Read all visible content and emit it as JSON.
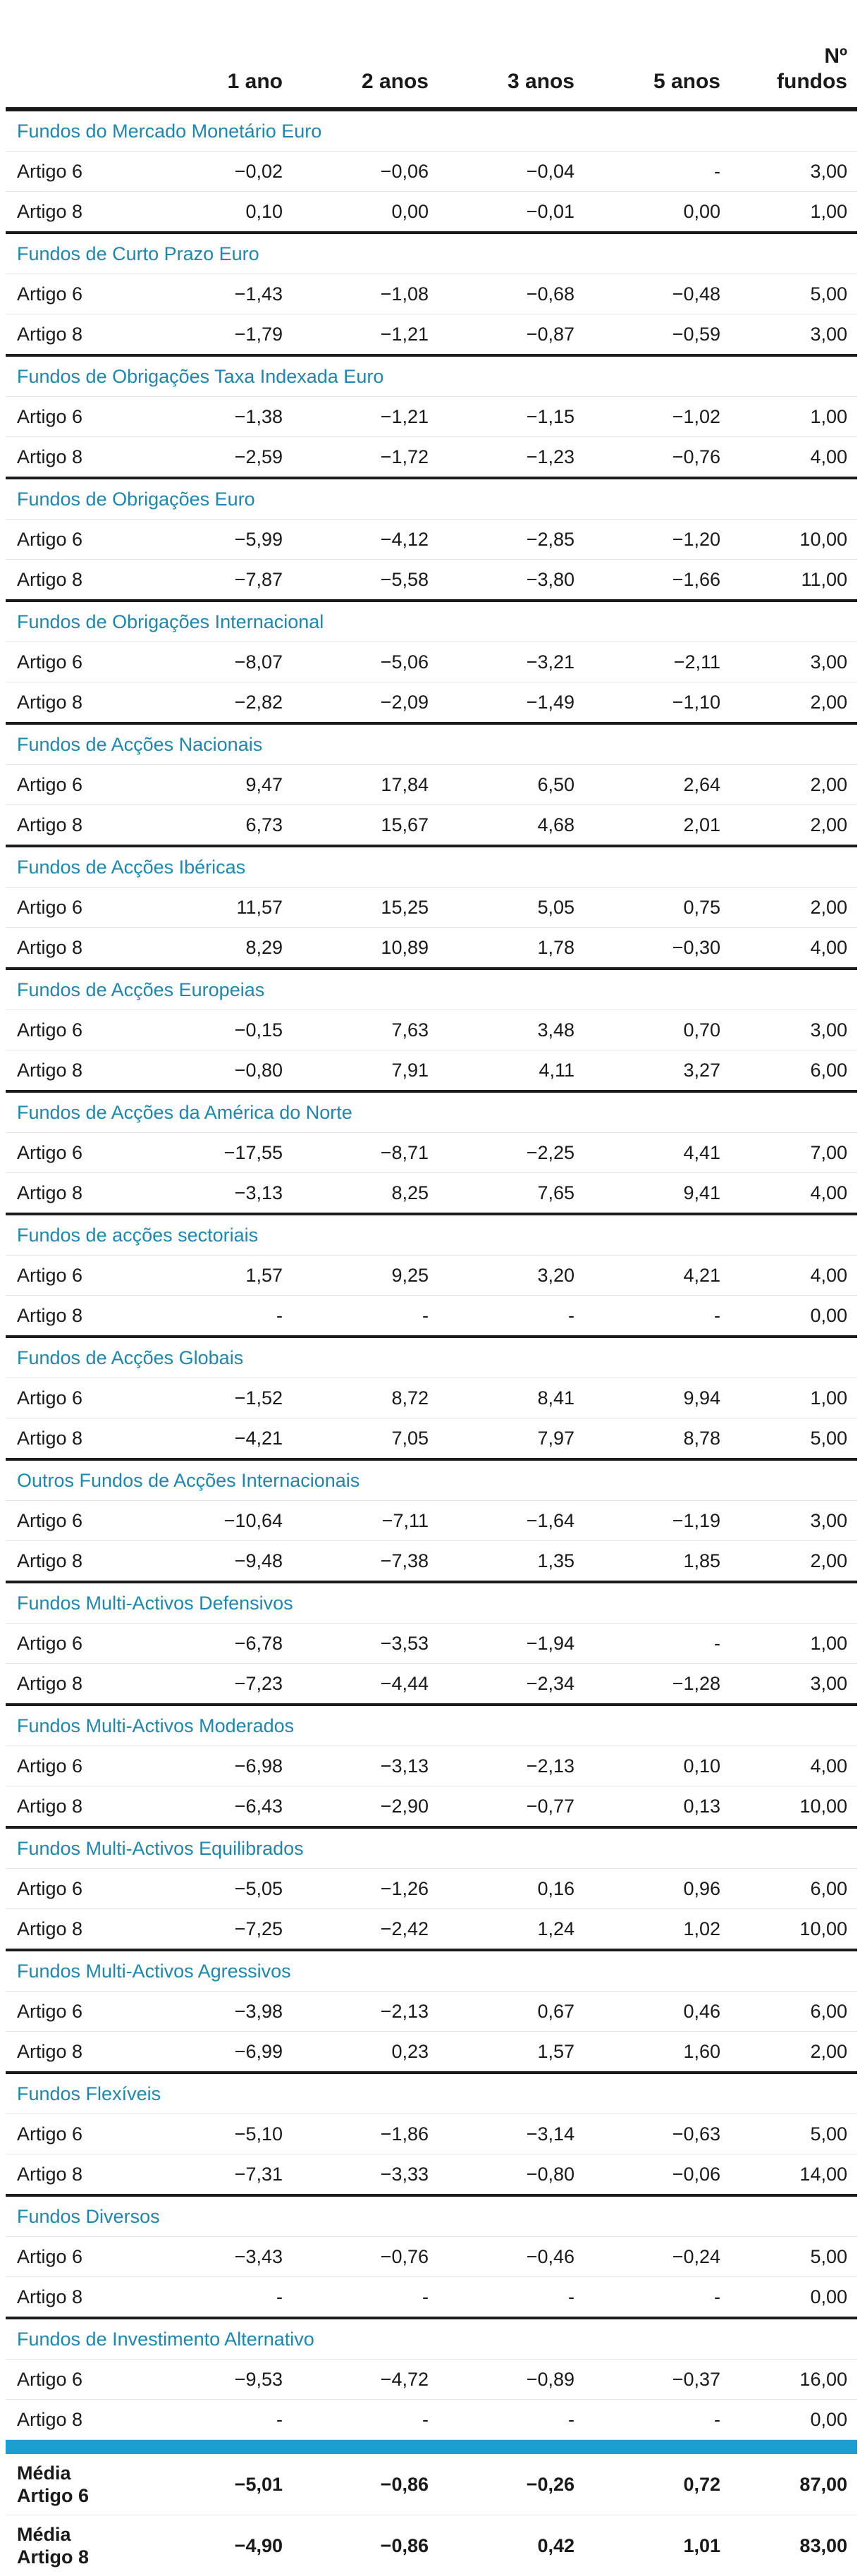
{
  "header": {
    "col_1": "1 ano",
    "col_2": "2 anos",
    "col_3": "3 anos",
    "col_4": "5 anos",
    "col_5_line1": "Nº",
    "col_5_line2": "fundos"
  },
  "groups": [
    {
      "name": "Fundos do Mercado Monetário Euro",
      "rows": [
        [
          "Artigo 6",
          "−0,02",
          "−0,06",
          "−0,04",
          "-",
          "3,00"
        ],
        [
          "Artigo 8",
          "0,10",
          "0,00",
          "−0,01",
          "0,00",
          "1,00"
        ]
      ]
    },
    {
      "name": "Fundos de Curto Prazo Euro",
      "rows": [
        [
          "Artigo 6",
          "−1,43",
          "−1,08",
          "−0,68",
          "−0,48",
          "5,00"
        ],
        [
          "Artigo 8",
          "−1,79",
          "−1,21",
          "−0,87",
          "−0,59",
          "3,00"
        ]
      ]
    },
    {
      "name": "Fundos de Obrigações Taxa Indexada Euro",
      "rows": [
        [
          "Artigo 6",
          "−1,38",
          "−1,21",
          "−1,15",
          "−1,02",
          "1,00"
        ],
        [
          "Artigo 8",
          "−2,59",
          "−1,72",
          "−1,23",
          "−0,76",
          "4,00"
        ]
      ]
    },
    {
      "name": "Fundos de Obrigações Euro",
      "rows": [
        [
          "Artigo 6",
          "−5,99",
          "−4,12",
          "−2,85",
          "−1,20",
          "10,00"
        ],
        [
          "Artigo 8",
          "−7,87",
          "−5,58",
          "−3,80",
          "−1,66",
          "11,00"
        ]
      ]
    },
    {
      "name": "Fundos de Obrigações Internacional",
      "rows": [
        [
          "Artigo 6",
          "−8,07",
          "−5,06",
          "−3,21",
          "−2,11",
          "3,00"
        ],
        [
          "Artigo 8",
          "−2,82",
          "−2,09",
          "−1,49",
          "−1,10",
          "2,00"
        ]
      ]
    },
    {
      "name": "Fundos de Acções Nacionais",
      "rows": [
        [
          "Artigo 6",
          "9,47",
          "17,84",
          "6,50",
          "2,64",
          "2,00"
        ],
        [
          "Artigo 8",
          "6,73",
          "15,67",
          "4,68",
          "2,01",
          "2,00"
        ]
      ]
    },
    {
      "name": "Fundos de Acções Ibéricas",
      "rows": [
        [
          "Artigo 6",
          "11,57",
          "15,25",
          "5,05",
          "0,75",
          "2,00"
        ],
        [
          "Artigo 8",
          "8,29",
          "10,89",
          "1,78",
          "−0,30",
          "4,00"
        ]
      ]
    },
    {
      "name": "Fundos de Acções Europeias",
      "rows": [
        [
          "Artigo 6",
          "−0,15",
          "7,63",
          "3,48",
          "0,70",
          "3,00"
        ],
        [
          "Artigo 8",
          "−0,80",
          "7,91",
          "4,11",
          "3,27",
          "6,00"
        ]
      ]
    },
    {
      "name": "Fundos de Acções da América do Norte",
      "rows": [
        [
          "Artigo 6",
          "−17,55",
          "−8,71",
          "−2,25",
          "4,41",
          "7,00"
        ],
        [
          "Artigo 8",
          "−3,13",
          "8,25",
          "7,65",
          "9,41",
          "4,00"
        ]
      ]
    },
    {
      "name": "Fundos de acções sectoriais",
      "rows": [
        [
          "Artigo 6",
          "1,57",
          "9,25",
          "3,20",
          "4,21",
          "4,00"
        ],
        [
          "Artigo 8",
          "-",
          "-",
          "-",
          "-",
          "0,00"
        ]
      ]
    },
    {
      "name": "Fundos de Acções Globais",
      "rows": [
        [
          "Artigo 6",
          "−1,52",
          "8,72",
          "8,41",
          "9,94",
          "1,00"
        ],
        [
          "Artigo 8",
          "−4,21",
          "7,05",
          "7,97",
          "8,78",
          "5,00"
        ]
      ]
    },
    {
      "name": "Outros Fundos de Acções Internacionais",
      "rows": [
        [
          "Artigo 6",
          "−10,64",
          "−7,11",
          "−1,64",
          "−1,19",
          "3,00"
        ],
        [
          "Artigo 8",
          "−9,48",
          "−7,38",
          "1,35",
          "1,85",
          "2,00"
        ]
      ]
    },
    {
      "name": "Fundos Multi-Activos Defensivos",
      "rows": [
        [
          "Artigo 6",
          "−6,78",
          "−3,53",
          "−1,94",
          "-",
          "1,00"
        ],
        [
          "Artigo 8",
          "−7,23",
          "−4,44",
          "−2,34",
          "−1,28",
          "3,00"
        ]
      ]
    },
    {
      "name": "Fundos Multi-Activos Moderados",
      "rows": [
        [
          "Artigo 6",
          "−6,98",
          "−3,13",
          "−2,13",
          "0,10",
          "4,00"
        ],
        [
          "Artigo 8",
          "−6,43",
          "−2,90",
          "−0,77",
          "0,13",
          "10,00"
        ]
      ]
    },
    {
      "name": "Fundos Multi-Activos Equilibrados",
      "rows": [
        [
          "Artigo 6",
          "−5,05",
          "−1,26",
          "0,16",
          "0,96",
          "6,00"
        ],
        [
          "Artigo 8",
          "−7,25",
          "−2,42",
          "1,24",
          "1,02",
          "10,00"
        ]
      ]
    },
    {
      "name": "Fundos Multi-Activos Agressivos",
      "rows": [
        [
          "Artigo 6",
          "−3,98",
          "−2,13",
          "0,67",
          "0,46",
          "6,00"
        ],
        [
          "Artigo 8",
          "−6,99",
          "0,23",
          "1,57",
          "1,60",
          "2,00"
        ]
      ]
    },
    {
      "name": "Fundos Flexíveis",
      "rows": [
        [
          "Artigo 6",
          "−5,10",
          "−1,86",
          "−3,14",
          "−0,63",
          "5,00"
        ],
        [
          "Artigo 8",
          "−7,31",
          "−3,33",
          "−0,80",
          "−0,06",
          "14,00"
        ]
      ]
    },
    {
      "name": "Fundos Diversos",
      "rows": [
        [
          "Artigo 6",
          "−3,43",
          "−0,76",
          "−0,46",
          "−0,24",
          "5,00"
        ],
        [
          "Artigo 8",
          "-",
          "-",
          "-",
          "-",
          "0,00"
        ]
      ]
    },
    {
      "name": "Fundos de Investimento Alternativo",
      "rows": [
        [
          "Artigo 6",
          "−9,53",
          "−4,72",
          "−0,89",
          "−0,37",
          "16,00"
        ],
        [
          "Artigo 8",
          "-",
          "-",
          "-",
          "-",
          "0,00"
        ]
      ]
    }
  ],
  "summary": [
    {
      "label_line1": "Média",
      "label_line2": "Artigo 6",
      "values": [
        "−5,01",
        "−0,86",
        "−0,26",
        "0,72",
        "87,00"
      ]
    },
    {
      "label_line1": "Média",
      "label_line2": "Artigo 8",
      "values": [
        "−4,90",
        "−0,86",
        "0,42",
        "1,01",
        "83,00"
      ]
    }
  ],
  "colors": {
    "group_heading": "#1f86ad",
    "separator_bar": "#1a9fd0",
    "rule": "#1a1a1a"
  }
}
